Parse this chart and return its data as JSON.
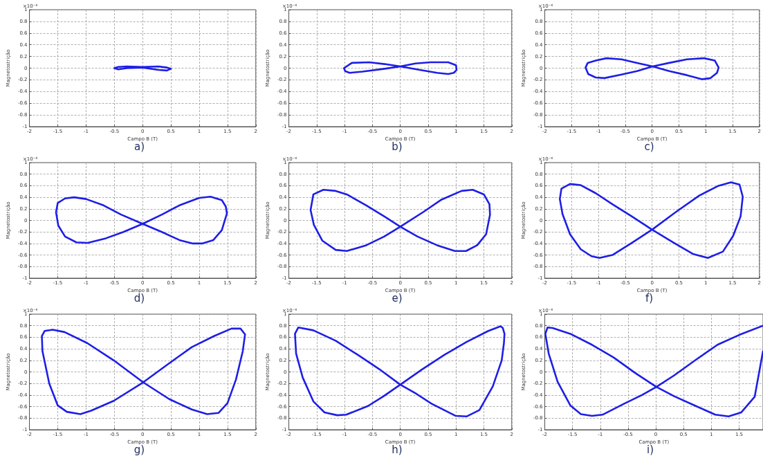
{
  "chart_data": [
    {
      "type": "line",
      "title": "a)",
      "xlabel": "Campo B (T)",
      "ylabel": "Magnetostrição",
      "annotations": [
        "×10⁻⁶"
      ],
      "xlim": [
        -2,
        2
      ],
      "ylim": [
        -1,
        1
      ],
      "xticks": [
        -2,
        -1.5,
        -1,
        -0.5,
        0,
        0.5,
        1,
        1.5,
        2
      ],
      "yticks": [
        -1,
        -0.8,
        -0.6,
        -0.4,
        -0.2,
        0,
        0.2,
        0.4,
        0.6,
        0.8,
        1
      ],
      "grid": true,
      "marker": "none",
      "line_style": "solid",
      "series": [
        {
          "color": "#1e1ee6",
          "x": [
            -0.5,
            -0.43,
            -0.28,
            0,
            0.28,
            0.43,
            0.5,
            null,
            0.5,
            0.43,
            0.28,
            0,
            -0.28,
            -0.43,
            -0.5
          ],
          "values": [
            0,
            0.02,
            0.03,
            0.02,
            0.03,
            0.01,
            -0.01,
            null,
            -0.01,
            -0.04,
            -0.03,
            0.01,
            0,
            -0.02,
            0
          ]
        }
      ]
    },
    {
      "type": "line",
      "title": "b)",
      "xlabel": "Campo B (T)",
      "ylabel": "Magnetostrição",
      "annotations": [
        "×10⁻⁶"
      ],
      "xlim": [
        -2,
        2
      ],
      "ylim": [
        -1,
        1
      ],
      "xticks": [
        -2,
        -1.5,
        -1,
        -0.5,
        0,
        0.5,
        1,
        1.5,
        2
      ],
      "yticks": [
        -1,
        -0.8,
        -0.6,
        -0.4,
        -0.2,
        0,
        0.2,
        0.4,
        0.6,
        0.8,
        1
      ],
      "grid": true,
      "marker": "none",
      "line_style": "solid",
      "series": [
        {
          "color": "#1e1ee6",
          "x": [
            -1.01,
            -0.87,
            -0.56,
            -0.28,
            0,
            0.35,
            0.66,
            0.86,
            0.96,
            1.01,
            null,
            1.01,
            1.0,
            0.86,
            0.54,
            0.27,
            0,
            -0.28,
            -0.68,
            -0.91,
            -0.99,
            -1.01
          ],
          "values": [
            0,
            0.09,
            0.1,
            0.07,
            0.03,
            -0.03,
            -0.08,
            -0.1,
            -0.08,
            -0.03,
            null,
            -0.03,
            0.05,
            0.1,
            0.1,
            0.08,
            0.03,
            -0.01,
            -0.06,
            -0.08,
            -0.05,
            0
          ]
        }
      ]
    },
    {
      "type": "line",
      "title": "c)",
      "xlabel": "Campo B (T)",
      "ylabel": "Magnetostrição",
      "annotations": [
        "×10⁻⁶"
      ],
      "xlim": [
        -2,
        2
      ],
      "ylim": [
        -1,
        1
      ],
      "xticks": [
        -2,
        -1.5,
        -1,
        -0.5,
        0,
        0.5,
        1,
        1.5,
        2
      ],
      "yticks": [
        -1,
        -0.8,
        -0.6,
        -0.4,
        -0.2,
        0,
        0.2,
        0.4,
        0.6,
        0.8,
        1
      ],
      "grid": true,
      "marker": "none",
      "line_style": "solid",
      "series": [
        {
          "color": "#1e1ee6",
          "x": [
            -1.24,
            -1.2,
            -1.05,
            -0.85,
            -0.57,
            -0.28,
            0.01,
            0.32,
            0.65,
            0.93,
            1.09,
            1.21,
            1.24,
            null,
            1.24,
            1.17,
            0.97,
            0.65,
            0.32,
            0.01,
            -0.28,
            -0.57,
            -0.89,
            -1.05,
            -1.19,
            -1.24
          ],
          "values": [
            0.01,
            0.09,
            0.13,
            0.17,
            0.15,
            0.09,
            0.03,
            -0.05,
            -0.12,
            -0.19,
            -0.17,
            -0.08,
            0.01,
            null,
            0.01,
            0.13,
            0.17,
            0.15,
            0.09,
            0.03,
            -0.05,
            -0.11,
            -0.17,
            -0.16,
            -0.1,
            0.01
          ]
        }
      ]
    },
    {
      "type": "line",
      "title": "d)",
      "xlabel": "Campo B (T)",
      "ylabel": "Magnetostrição",
      "annotations": [
        "×10⁻⁶"
      ],
      "xlim": [
        -2,
        2
      ],
      "ylim": [
        -1,
        1
      ],
      "xticks": [
        -2,
        -1.5,
        -1,
        -0.5,
        0,
        0.5,
        1,
        1.5,
        2
      ],
      "yticks": [
        -1,
        -0.8,
        -0.6,
        -0.4,
        -0.2,
        0,
        0.2,
        0.4,
        0.6,
        0.8,
        1
      ],
      "grid": true,
      "marker": "none",
      "line_style": "solid",
      "series": [
        {
          "color": "#1e1ee6",
          "x": [
            -1.53,
            -1.5,
            -1.37,
            -1.21,
            -1.0,
            -0.69,
            -0.38,
            0,
            0.34,
            0.65,
            0.89,
            1.05,
            1.25,
            1.4,
            1.49,
            null,
            1.49,
            1.47,
            1.4,
            1.2,
            1.0,
            0.65,
            0.34,
            0,
            -0.34,
            -0.65,
            -0.97,
            -1.17,
            -1.37,
            -1.49,
            -1.53
          ],
          "values": [
            0.14,
            0.3,
            0.38,
            0.4,
            0.37,
            0.26,
            0.1,
            -0.06,
            -0.2,
            -0.34,
            -0.4,
            -0.4,
            -0.34,
            -0.17,
            0.12,
            null,
            0.12,
            0.24,
            0.35,
            0.41,
            0.39,
            0.26,
            0.1,
            -0.06,
            -0.2,
            -0.31,
            -0.39,
            -0.38,
            -0.28,
            -0.09,
            0.14
          ]
        }
      ]
    },
    {
      "type": "line",
      "title": "e)",
      "xlabel": "Campo B (T)",
      "ylabel": "Magnetostrição",
      "annotations": [
        "×10⁻⁶"
      ],
      "xlim": [
        -2,
        2
      ],
      "ylim": [
        -1,
        1
      ],
      "xticks": [
        -2,
        -1.5,
        -1,
        -0.5,
        0,
        0.5,
        1,
        1.5,
        2
      ],
      "yticks": [
        -1,
        -0.8,
        -0.6,
        -0.4,
        -0.2,
        0,
        0.2,
        0.4,
        0.6,
        0.8,
        1
      ],
      "grid": true,
      "marker": "none",
      "line_style": "solid",
      "series": [
        {
          "color": "#1e1ee6",
          "x": [
            -1.61,
            -1.56,
            -1.38,
            -1.16,
            -0.96,
            -0.61,
            -0.29,
            0,
            0.31,
            0.66,
            0.98,
            1.18,
            1.38,
            1.54,
            1.61,
            null,
            1.61,
            1.6,
            1.5,
            1.3,
            1.1,
            0.74,
            0.42,
            0,
            -0.29,
            -0.61,
            -0.96,
            -1.16,
            -1.4,
            -1.55,
            -1.61
          ],
          "values": [
            0.18,
            0.45,
            0.53,
            0.51,
            0.45,
            0.26,
            0.07,
            -0.11,
            -0.28,
            -0.43,
            -0.53,
            -0.53,
            -0.43,
            -0.24,
            0.1,
            null,
            0.1,
            0.28,
            0.45,
            0.53,
            0.51,
            0.36,
            0.15,
            -0.11,
            -0.28,
            -0.43,
            -0.53,
            -0.51,
            -0.35,
            -0.08,
            0.18
          ]
        }
      ]
    },
    {
      "type": "line",
      "title": "f)",
      "xlabel": "Campo B (T)",
      "ylabel": "Magnetostrição",
      "annotations": [
        "×10⁻⁶"
      ],
      "xlim": [
        -2,
        2
      ],
      "ylim": [
        -1,
        1
      ],
      "xticks": [
        -2,
        -1.5,
        -1,
        -0.5,
        0,
        0.5,
        1,
        1.5,
        2
      ],
      "yticks": [
        -1,
        -0.8,
        -0.6,
        -0.4,
        -0.2,
        0,
        0.2,
        0.4,
        0.6,
        0.8,
        1
      ],
      "grid": true,
      "marker": "none",
      "line_style": "solid",
      "series": [
        {
          "color": "#1e1ee6",
          "x": [
            -1.72,
            -1.69,
            -1.53,
            -1.33,
            -1.05,
            -0.74,
            -0.38,
            0,
            0.41,
            0.76,
            1.04,
            1.32,
            1.51,
            1.65,
            1.69,
            null,
            1.69,
            1.63,
            1.47,
            1.24,
            0.88,
            0.45,
            0,
            -0.38,
            -0.74,
            -0.98,
            -1.13,
            -1.33,
            -1.53,
            -1.67,
            -1.72
          ],
          "values": [
            0.37,
            0.55,
            0.63,
            0.61,
            0.47,
            0.28,
            0.07,
            -0.16,
            -0.39,
            -0.58,
            -0.65,
            -0.54,
            -0.27,
            0.07,
            0.41,
            null,
            0.41,
            0.62,
            0.66,
            0.6,
            0.43,
            0.15,
            -0.16,
            -0.39,
            -0.6,
            -0.65,
            -0.62,
            -0.5,
            -0.24,
            0.11,
            0.37
          ]
        }
      ]
    },
    {
      "type": "line",
      "title": "g)",
      "xlabel": "Campo B (T)",
      "ylabel": "Magnetostrição",
      "annotations": [
        "×10⁻⁶"
      ],
      "xlim": [
        -2,
        2
      ],
      "ylim": [
        -1,
        1
      ],
      "xticks": [
        -2,
        -1.5,
        -1,
        -0.5,
        0,
        0.5,
        1,
        1.5,
        2
      ],
      "yticks": [
        -1,
        -0.8,
        -0.6,
        -0.4,
        -0.2,
        0,
        0.2,
        0.4,
        0.6,
        0.8,
        1
      ],
      "grid": true,
      "marker": "none",
      "line_style": "solid",
      "series": [
        {
          "color": "#1e1ee6",
          "x": [
            -1.78,
            -1.73,
            -1.59,
            -1.38,
            -0.98,
            -0.51,
            0.01,
            0.47,
            0.87,
            1.14,
            1.34,
            1.5,
            1.65,
            1.77,
            1.81,
            null,
            1.81,
            1.73,
            1.57,
            1.26,
            0.87,
            0.47,
            0.01,
            -0.51,
            -0.91,
            -1.1,
            -1.34,
            -1.5,
            -1.65,
            -1.77,
            -1.78
          ],
          "values": [
            0.62,
            0.71,
            0.73,
            0.69,
            0.5,
            0.2,
            -0.18,
            -0.47,
            -0.65,
            -0.73,
            -0.71,
            -0.54,
            -0.13,
            0.36,
            0.65,
            null,
            0.65,
            0.75,
            0.75,
            0.62,
            0.43,
            0.15,
            -0.18,
            -0.5,
            -0.67,
            -0.73,
            -0.69,
            -0.58,
            -0.2,
            0.36,
            0.62
          ]
        }
      ]
    },
    {
      "type": "line",
      "title": "h)",
      "xlabel": "Campo B (T)",
      "ylabel": "Magnetostrição",
      "annotations": [
        "×10⁻⁶"
      ],
      "xlim": [
        -2,
        2
      ],
      "ylim": [
        -1,
        1
      ],
      "xticks": [
        -2,
        -1.5,
        -1,
        -0.5,
        0,
        0.5,
        1,
        1.5,
        2
      ],
      "yticks": [
        -1,
        -0.8,
        -0.6,
        -0.4,
        -0.2,
        0,
        0.2,
        0.4,
        0.6,
        0.8,
        1
      ],
      "grid": true,
      "marker": "none",
      "line_style": "solid",
      "series": [
        {
          "color": "#1e1ee6",
          "x": [
            -1.89,
            -1.83,
            -1.56,
            -1.16,
            -0.77,
            -0.38,
            0,
            0.29,
            0.56,
            0.99,
            1.19,
            1.42,
            1.66,
            1.82,
            1.86,
            1.87,
            null,
            1.87,
            1.84,
            1.8,
            1.58,
            1.19,
            0.8,
            0.4,
            0,
            -0.3,
            -0.58,
            -0.97,
            -1.13,
            -1.36,
            -1.56,
            -1.75,
            -1.87,
            -1.89
          ],
          "values": [
            0.66,
            0.77,
            0.72,
            0.54,
            0.3,
            0.05,
            -0.22,
            -0.38,
            -0.55,
            -0.76,
            -0.77,
            -0.66,
            -0.25,
            0.2,
            0.5,
            0.66,
            null,
            0.66,
            0.76,
            0.79,
            0.71,
            0.52,
            0.3,
            0.05,
            -0.22,
            -0.42,
            -0.59,
            -0.74,
            -0.75,
            -0.7,
            -0.51,
            -0.1,
            0.32,
            0.66
          ]
        }
      ]
    },
    {
      "type": "line",
      "title": "i)",
      "xlabel": "Campo B (T)",
      "ylabel": "Magnetostrição",
      "annotations": [
        "×10⁻⁶"
      ],
      "xlim": [
        -2,
        1.93
      ],
      "ylim": [
        -1,
        1
      ],
      "xticks": [
        -2,
        -1.5,
        -1,
        -0.5,
        0,
        0.5,
        1,
        1.5
      ],
      "yticks": [
        -1,
        -0.8,
        -0.6,
        -0.4,
        -0.2,
        0,
        0.2,
        0.4,
        0.6,
        0.8,
        1
      ],
      "grid": true,
      "marker": "none",
      "line_style": "solid",
      "series": [
        {
          "color": "#1e1ee6",
          "x": [
            -1.99,
            -1.95,
            -1.86,
            -1.54,
            -1.15,
            -0.76,
            -0.37,
            0.01,
            0.33,
            0.72,
            1.07,
            1.31,
            1.54,
            1.78,
            1.93,
            null,
            1.93,
            1.5,
            1.11,
            0.72,
            0.33,
            0.01,
            -0.25,
            -0.57,
            -0.96,
            -1.15,
            -1.35,
            -1.54,
            -1.77,
            -1.93,
            -1.99
          ],
          "values": [
            0.66,
            0.77,
            0.76,
            0.66,
            0.47,
            0.25,
            -0.02,
            -0.26,
            -0.42,
            -0.59,
            -0.74,
            -0.77,
            -0.7,
            -0.43,
            0.36,
            null,
            0.8,
            0.64,
            0.47,
            0.21,
            -0.06,
            -0.26,
            -0.4,
            -0.55,
            -0.74,
            -0.76,
            -0.73,
            -0.58,
            -0.17,
            0.32,
            0.66
          ]
        }
      ]
    }
  ]
}
